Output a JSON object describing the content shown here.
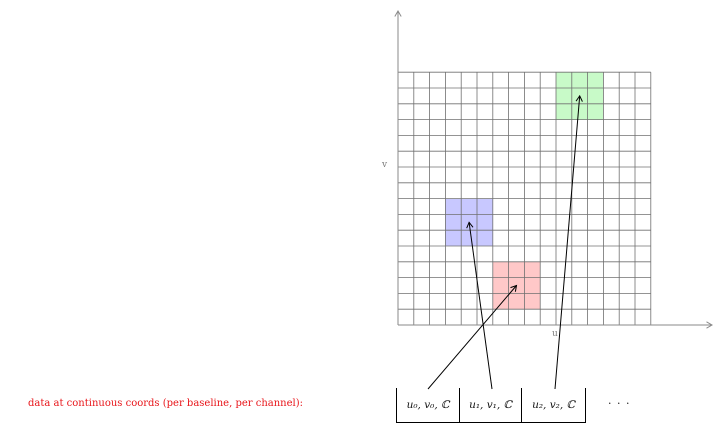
{
  "axes": {
    "x_label": "u",
    "y_label": "v"
  },
  "grid": {
    "columns": 16,
    "rows": 16,
    "show_grid": true
  },
  "patches": [
    {
      "name": "red-patch",
      "color": "#ffc8c8",
      "col": 6,
      "row": 1,
      "size": 3
    },
    {
      "name": "blue-patch",
      "color": "#c8c8ff",
      "col": 3,
      "row": 5,
      "size": 3
    },
    {
      "name": "green-patch",
      "color": "#c8fac8",
      "col": 10,
      "row": 13,
      "size": 3
    }
  ],
  "caption": "data at continuous coords (per baseline, per channel):",
  "buffer": {
    "cells": [
      "u₀, v₀, ℂ",
      "u₁, v₁, ℂ",
      "u₂, v₂, ℂ"
    ],
    "ellipsis": "· · ·"
  },
  "colors": {
    "caption": "#e8151a",
    "grid_line": "#707070",
    "axis": "#8a8a8a",
    "arrow": "#000000"
  }
}
